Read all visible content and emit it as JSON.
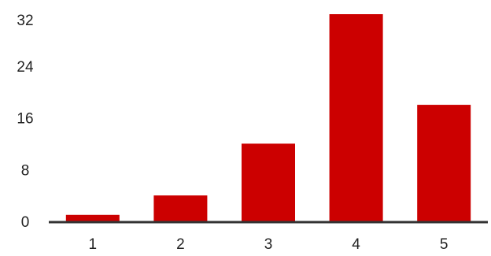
{
  "chart_data": {
    "type": "bar",
    "categories": [
      "1",
      "2",
      "3",
      "4",
      "5"
    ],
    "values": [
      1,
      4,
      12,
      32,
      18
    ],
    "ylim": [
      0,
      32
    ],
    "yticks": [
      0,
      8,
      16,
      24,
      32
    ],
    "xlabel": "",
    "ylabel": "",
    "title": "",
    "grid": false,
    "legend": "none",
    "colors": {
      "bar": "#cc0000",
      "axis": "#333333",
      "text": "#222222"
    }
  }
}
